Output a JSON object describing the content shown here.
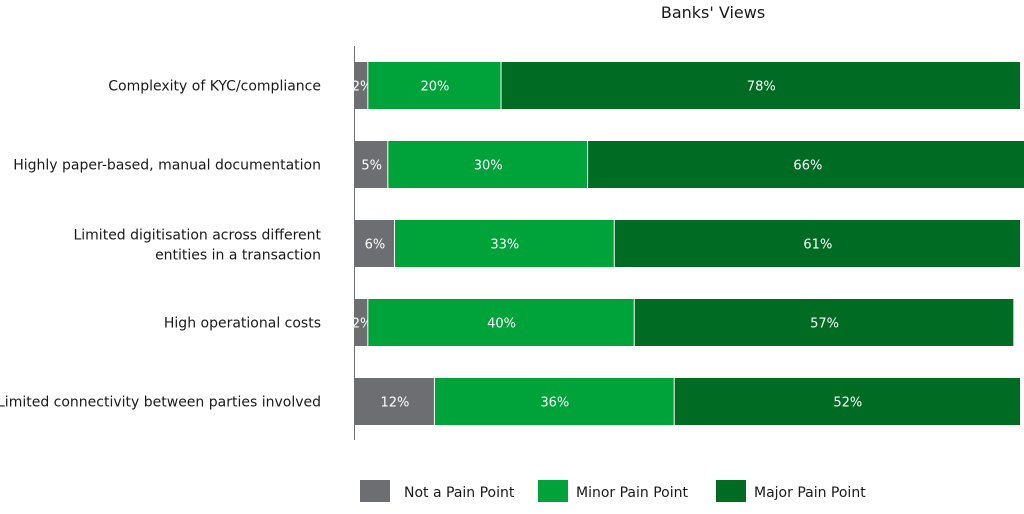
{
  "chart_data": {
    "type": "bar",
    "orientation": "horizontal",
    "stacked": true,
    "title": "Banks' Views",
    "categories": [
      "Complexity of KYC/compliance",
      "Highly paper-based, manual documentation",
      "Limited digitisation across different entities in a transaction",
      "High operational costs",
      "Limited connectivity between parties involved"
    ],
    "series": [
      {
        "name": "Not a Pain Point",
        "color": "#6d6e71",
        "values": [
          2,
          5,
          6,
          2,
          12
        ],
        "labels": [
          "2%",
          "5%",
          "6%",
          "2%",
          "12%"
        ]
      },
      {
        "name": "Minor Pain Point",
        "color": "#00a33a",
        "values": [
          20,
          30,
          33,
          40,
          36
        ],
        "labels": [
          "20%",
          "30%",
          "33%",
          "40%",
          "36%"
        ]
      },
      {
        "name": "Major Pain Point",
        "color": "#006b22",
        "values": [
          78,
          66,
          61,
          57,
          52
        ],
        "labels": [
          "78%",
          "66%",
          "61%",
          "57%",
          "52%"
        ]
      }
    ],
    "xlim": [
      0,
      100
    ],
    "grid": false,
    "legend_position": "bottom"
  }
}
